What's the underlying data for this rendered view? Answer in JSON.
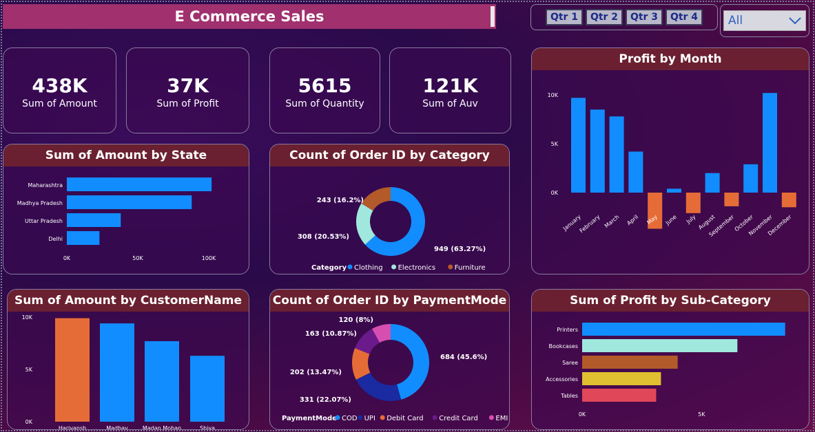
{
  "header": {
    "title": "E Commerce Sales"
  },
  "quarters": [
    "Qtr 1",
    "Qtr 2",
    "Qtr 3",
    "Qtr 4"
  ],
  "filter": {
    "selected": "All"
  },
  "kpis": [
    {
      "value": "438K",
      "label": "Sum of Amount"
    },
    {
      "value": "37K",
      "label": "Sum of Profit"
    },
    {
      "value": "5615",
      "label": "Sum of Quantity"
    },
    {
      "value": "121K",
      "label": "Sum of Auv"
    }
  ],
  "colors": {
    "blue": "#118dff",
    "orange": "#e66c37",
    "teal": "#a0e8de",
    "brown": "#b35a2a",
    "navy": "#1a2aa0",
    "pink": "#d64fb0",
    "olive": "#e0c030",
    "red": "#e0485a"
  },
  "chart_data": [
    {
      "type": "bar",
      "title": "Sum of Amount by State",
      "orientation": "horizontal",
      "categories": [
        "Maharashtra",
        "Madhya Pradesh",
        "Uttar Pradesh",
        "Delhi"
      ],
      "values": [
        102000,
        88000,
        38000,
        23000
      ],
      "xticks": [
        "0K",
        "50K",
        "100K"
      ],
      "xlim": [
        0,
        100000
      ]
    },
    {
      "type": "pie",
      "title": "Count of Order ID by Category",
      "legend_title": "Category",
      "categories": [
        "Clothing",
        "Electronics",
        "Furniture"
      ],
      "values": [
        949,
        308,
        243
      ],
      "labels": [
        "949 (63.27%)",
        "308 (20.53%)",
        "243 (16.2%)"
      ],
      "colors": [
        "#118dff",
        "#a0e8de",
        "#b35a2a"
      ]
    },
    {
      "type": "bar",
      "title": "Profit by Month",
      "categories": [
        "January",
        "February",
        "March",
        "April",
        "May",
        "June",
        "July",
        "August",
        "September",
        "October",
        "November",
        "December"
      ],
      "values": [
        9700,
        8500,
        7800,
        4200,
        -3700,
        400,
        -2100,
        2000,
        -1400,
        2900,
        10200,
        -1500
      ],
      "yticks": [
        "10K",
        "5K",
        "0K"
      ],
      "ylim": [
        -5000,
        10000
      ]
    },
    {
      "type": "bar",
      "title": "Sum of Amount by CustomerName",
      "categories": [
        "Harivansh",
        "Madhav",
        "Madan Mohan",
        "Shiva"
      ],
      "values": [
        9900,
        9400,
        7700,
        6300
      ],
      "yticks": [
        "10K",
        "5K",
        "0K"
      ],
      "ylim": [
        0,
        10000
      ]
    },
    {
      "type": "pie",
      "title": "Count of Order ID by PaymentMode",
      "legend_title": "PaymentMode",
      "categories": [
        "COD",
        "UPI",
        "Debit Card",
        "Credit Card",
        "EMI"
      ],
      "values": [
        684,
        331,
        202,
        163,
        120
      ],
      "labels": [
        "684 (45.6%)",
        "331 (22.07%)",
        "202 (13.47%)",
        "163 (10.87%)",
        "120 (8%)"
      ],
      "colors": [
        "#118dff",
        "#1a2aa0",
        "#e66c37",
        "#6a1a8a",
        "#d64fb0"
      ]
    },
    {
      "type": "bar",
      "title": "Sum of Profit by Sub-Category",
      "orientation": "horizontal",
      "categories": [
        "Printers",
        "Bookcases",
        "Saree",
        "Accessories",
        "Tables"
      ],
      "values": [
        8500,
        6500,
        4000,
        3300,
        3100
      ],
      "xticks": [
        "0K",
        "5K"
      ],
      "xlim": [
        0,
        9000
      ],
      "colors": [
        "#118dff",
        "#a0e8de",
        "#b35a2a",
        "#e0c030",
        "#e0485a"
      ]
    }
  ]
}
